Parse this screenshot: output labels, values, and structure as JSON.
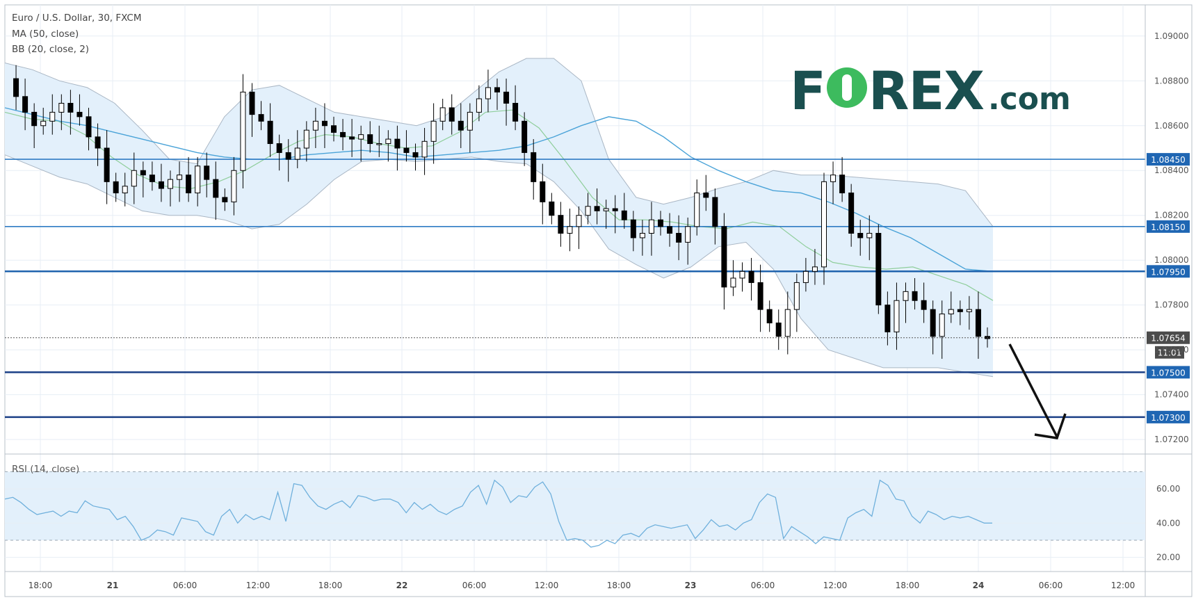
{
  "header": {
    "title": "Euro / U.S. Dollar, 30, FXCM",
    "ma": "MA (50, close)",
    "bb": "BB (20, close, 2)"
  },
  "logo": {
    "pre": "F",
    "post": "REX",
    "suffix": ".com"
  },
  "rsi": {
    "title": "RSI (14, close)"
  },
  "chart_data": [
    {
      "type": "candlestick",
      "title": "Euro / U.S. Dollar, 30, FXCM",
      "ylim": [
        1.0715,
        1.0915
      ],
      "y_ticks": [
        "1.07200",
        "1.07400",
        "1.07600",
        "1.07800",
        "1.08000",
        "1.08200",
        "1.08400",
        "1.08600",
        "1.08800",
        "1.09000"
      ],
      "x_ticks": [
        "18:00",
        "21",
        "06:00",
        "12:00",
        "18:00",
        "22",
        "06:00",
        "12:00",
        "18:00",
        "23",
        "06:00",
        "12:00",
        "18:00",
        "24",
        "06:00",
        "12:00"
      ],
      "horizontal_levels": [
        {
          "label": "1.08450",
          "value": 1.0845,
          "color": "#2f7bc4"
        },
        {
          "label": "1.08150",
          "value": 1.0815,
          "color": "#2f7bc4"
        },
        {
          "label": "1.07950",
          "value": 1.0795,
          "color": "#1f63ad"
        },
        {
          "label": "1.07500",
          "value": 1.075,
          "color": "#1a3f86"
        },
        {
          "label": "1.07300",
          "value": 1.073,
          "color": "#1a3f86"
        }
      ],
      "last_price": "1.07654",
      "countdown": "11:01",
      "price_path": [
        1.0881,
        1.0873,
        1.0866,
        1.086,
        1.0862,
        1.0866,
        1.087,
        1.0866,
        1.0864,
        1.0855,
        1.085,
        1.0835,
        1.083,
        1.0833,
        1.084,
        1.0838,
        1.0835,
        1.0832,
        1.0836,
        1.0838,
        1.083,
        1.0842,
        1.0836,
        1.0828,
        1.0826,
        1.084,
        1.0875,
        1.0865,
        1.0862,
        1.0852,
        1.0848,
        1.0845,
        1.085,
        1.0858,
        1.0862,
        1.086,
        1.0857,
        1.0855,
        1.0854,
        1.0856,
        1.0852,
        1.0852,
        1.0854,
        1.085,
        1.0848,
        1.0846,
        1.0853,
        1.0862,
        1.0868,
        1.0862,
        1.0858,
        1.0866,
        1.0872,
        1.0877,
        1.0875,
        1.087,
        1.0862,
        1.0848,
        1.0835,
        1.0826,
        1.082,
        1.0812,
        1.0815,
        1.082,
        1.0824,
        1.0822,
        1.0823,
        1.0822,
        1.0818,
        1.081,
        1.0812,
        1.0818,
        1.0815,
        1.0812,
        1.0808,
        1.0815,
        1.083,
        1.0828,
        1.0815,
        1.0788,
        1.0792,
        1.0795,
        1.079,
        1.0778,
        1.0772,
        1.0766,
        1.0778,
        1.079,
        1.0795,
        1.0797,
        1.0835,
        1.0838,
        1.083,
        1.0812,
        1.081,
        1.0812,
        1.078,
        1.0768,
        1.0782,
        1.0786,
        1.0782,
        1.0778,
        1.0766,
        1.0776,
        1.0778,
        1.0777,
        1.0778,
        1.0766,
        1.0765
      ],
      "sma50_path": [
        1.0868,
        1.0865,
        1.0862,
        1.086,
        1.0857,
        1.0854,
        1.0851,
        1.0848,
        1.0846,
        1.0845,
        1.0845,
        1.0847,
        1.0848,
        1.0849,
        1.0848,
        1.0846,
        1.0847,
        1.0848,
        1.0849,
        1.0851,
        1.0855,
        1.086,
        1.0864,
        1.0862,
        1.0855,
        1.0846,
        1.084,
        1.0835,
        1.0831,
        1.083,
        1.0826,
        1.0821,
        1.0815,
        1.081,
        1.0803,
        1.0796,
        1.0795
      ],
      "bb_mid_path": [
        1.0866,
        1.0863,
        1.0862,
        1.0856,
        1.0846,
        1.0838,
        1.0833,
        1.0832,
        1.0835,
        1.084,
        1.0847,
        1.0853,
        1.0856,
        1.0855,
        1.0852,
        1.085,
        1.0851,
        1.0857,
        1.0866,
        1.0867,
        1.0859,
        1.0844,
        1.0828,
        1.0818,
        1.0818,
        1.0817,
        1.0815,
        1.0814,
        1.0817,
        1.0815,
        1.0806,
        1.0799,
        1.0797,
        1.0796,
        1.0797,
        1.0793,
        1.0789,
        1.0782
      ],
      "bb_upper_path": [
        1.0888,
        1.0885,
        1.088,
        1.0877,
        1.087,
        1.0858,
        1.0845,
        1.0843,
        1.0864,
        1.0876,
        1.0878,
        1.0872,
        1.0866,
        1.0864,
        1.0862,
        1.086,
        1.0864,
        1.0874,
        1.0884,
        1.089,
        1.089,
        1.088,
        1.0845,
        1.0828,
        1.0825,
        1.0828,
        1.0832,
        1.0835,
        1.084,
        1.0838,
        1.0838,
        1.0837,
        1.0836,
        1.0835,
        1.0834,
        1.0831,
        1.0815
      ],
      "bb_lower_path": [
        1.0847,
        1.0842,
        1.0837,
        1.0834,
        1.0828,
        1.0822,
        1.082,
        1.082,
        1.0818,
        1.0814,
        1.0816,
        1.0825,
        1.0836,
        1.0844,
        1.0845,
        1.0844,
        1.0845,
        1.0846,
        1.0844,
        1.0843,
        1.0835,
        1.0822,
        1.0805,
        1.0798,
        1.0792,
        1.0797,
        1.0806,
        1.0808,
        1.0796,
        1.0774,
        1.076,
        1.0756,
        1.0752,
        1.0752,
        1.0752,
        1.075,
        1.0748
      ]
    },
    {
      "type": "line",
      "title": "RSI (14, close)",
      "ylim": [
        15,
        75
      ],
      "y_ticks": [
        "20.00",
        "40.00",
        "60.00"
      ],
      "band": [
        30,
        70
      ],
      "values": [
        54,
        55,
        52,
        48,
        45,
        46,
        47,
        44,
        47,
        46,
        53,
        50,
        49,
        48,
        42,
        44,
        38,
        30,
        32,
        36,
        35,
        33,
        43,
        42,
        41,
        35,
        33,
        44,
        48,
        40,
        45,
        42,
        44,
        42,
        58,
        41,
        63,
        62,
        55,
        50,
        48,
        51,
        53,
        49,
        56,
        55,
        53,
        54,
        54,
        52,
        46,
        52,
        48,
        51,
        47,
        45,
        48,
        50,
        58,
        62,
        51,
        65,
        61,
        52,
        56,
        55,
        61,
        64,
        57,
        41,
        30,
        31,
        30,
        26,
        27,
        30,
        28,
        33,
        34,
        32,
        37,
        39,
        38,
        37,
        38,
        39,
        31,
        36,
        42,
        38,
        39,
        36,
        40,
        42,
        52,
        57,
        55,
        31,
        38,
        35,
        32,
        28,
        32,
        31,
        30,
        43,
        46,
        48,
        44,
        65,
        62,
        54,
        53,
        44,
        40,
        47,
        45,
        42,
        44,
        43,
        44,
        42,
        40,
        40
      ]
    }
  ],
  "colors": {
    "grid": "#e7eef5",
    "band_fill": "#e3f0fb",
    "bb_line": "#a9b6c4",
    "sma": "#4aa3d8",
    "bb_mid": "#8fce9b",
    "rsi_line": "#6fb0dc",
    "candle_up": "#ffffff",
    "candle_down": "#000000",
    "arrow": "#111111",
    "last_price_bg": "#4b4b4b"
  }
}
